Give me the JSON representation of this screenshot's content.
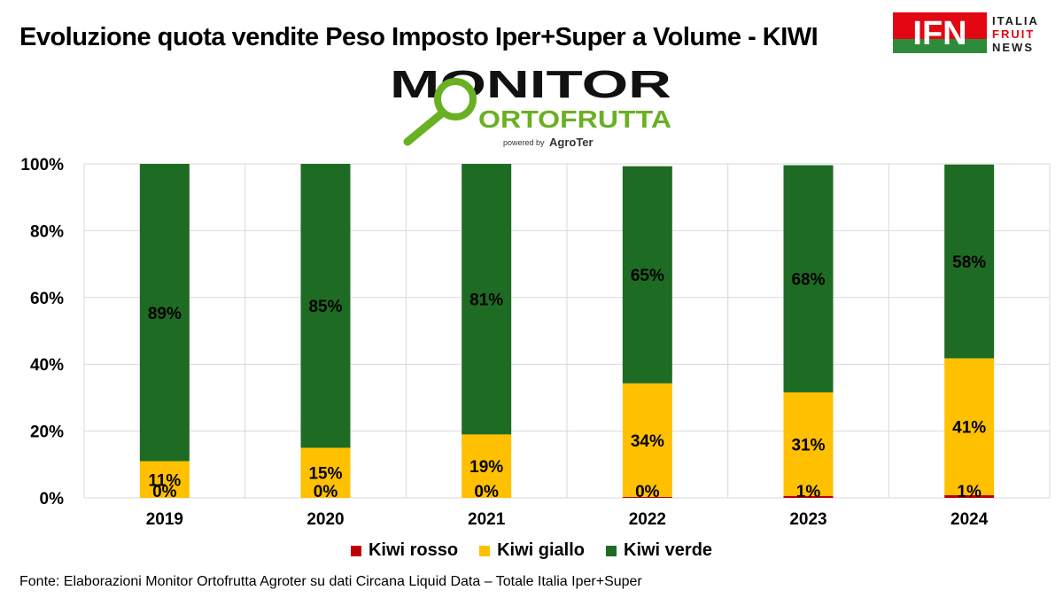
{
  "title": "Evoluzione quota vendite Peso Imposto Iper+Super a Volume - KIWI",
  "source": "Fonte: Elaborazioni Monitor Ortofrutta Agroter su dati Circana Liquid Data – Totale Italia Iper+Super",
  "logos": {
    "ifn_letters": "IFN",
    "ifn_lines": [
      "ITALIA",
      "FRUIT",
      "NEWS"
    ],
    "monitor_word": "MONITOR",
    "ortofrutta_word": "ORTOFRUTTA",
    "powered_by": "powered by",
    "agroter": "AgroTer"
  },
  "colors": {
    "kiwi_rosso": "#C00000",
    "kiwi_giallo": "#FFC000",
    "kiwi_verde": "#1E6B23",
    "monitor_green": "#6AB023",
    "ifn_red": "#E30613"
  },
  "chart_data": {
    "type": "bar",
    "stacked": true,
    "categories": [
      "2019",
      "2020",
      "2021",
      "2022",
      "2023",
      "2024"
    ],
    "series": [
      {
        "name": "Kiwi rosso",
        "values": [
          0,
          0,
          0,
          0,
          1,
          1
        ],
        "labels": [
          "0%",
          "0%",
          "0%",
          "0%",
          "1%",
          "1%"
        ],
        "rendered": [
          0,
          0,
          0,
          0.3,
          0.6,
          0.8
        ]
      },
      {
        "name": "Kiwi giallo",
        "values": [
          11,
          15,
          19,
          34,
          31,
          41
        ],
        "labels": [
          "11%",
          "15%",
          "19%",
          "34%",
          "31%",
          "41%"
        ]
      },
      {
        "name": "Kiwi verde",
        "values": [
          89,
          85,
          81,
          65,
          68,
          58
        ],
        "labels": [
          "89%",
          "85%",
          "81%",
          "65%",
          "68%",
          "58%"
        ]
      }
    ],
    "ylim": [
      0,
      100
    ],
    "yticks": [
      "0%",
      "20%",
      "40%",
      "60%",
      "80%",
      "100%"
    ],
    "grid": true,
    "legend_position": "bottom"
  }
}
